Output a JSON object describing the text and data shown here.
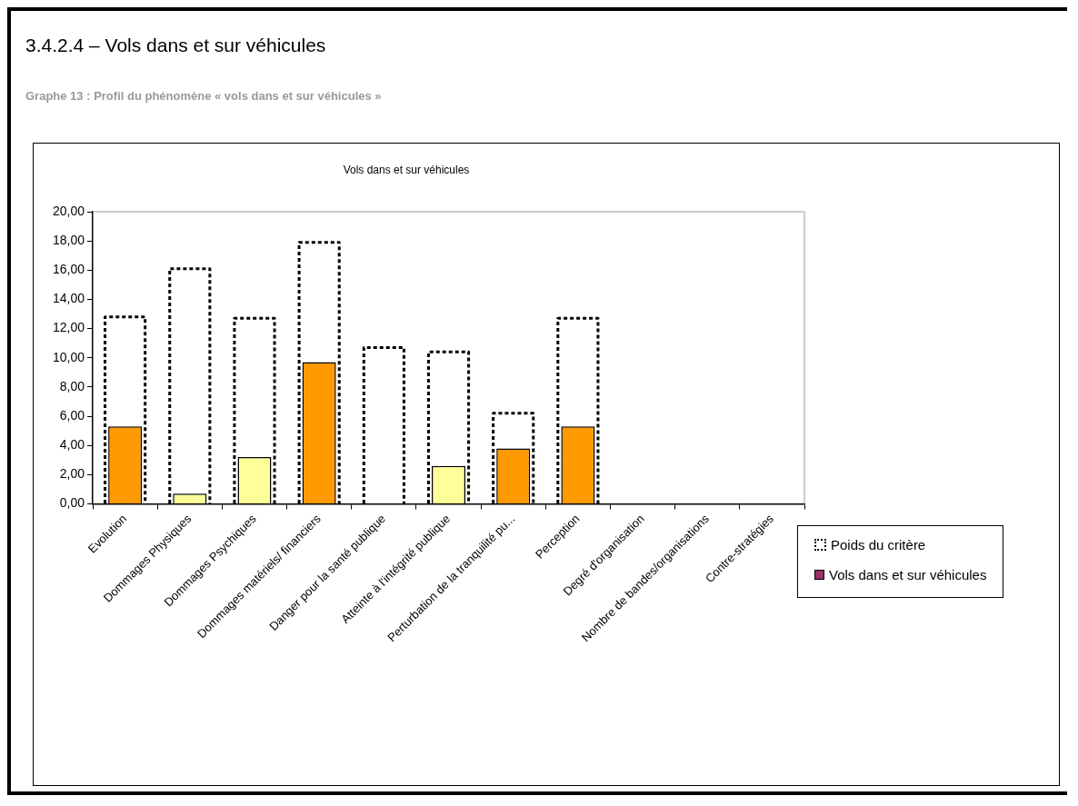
{
  "chart_data": {
    "type": "bar",
    "title": "3.4.2.4 – Vols dans et sur véhicules",
    "subtitle": "Graphe 13 : Profil du phénomène « vols dans et sur véhicules »",
    "annotations": [
      "Vols dans et sur véhicules"
    ],
    "categories": [
      "Evolution",
      "Dommages Physiques",
      "Dommages Psychiques",
      "Dommages matériels/ financiers",
      "Danger pour la santé publique",
      "Atteinte à l'intégrité publique",
      "Perturbation de la tranquilité pu...",
      "Perception",
      "Degré d'organisation",
      "Nombre de bandes/organisations",
      "Contre-stratégies"
    ],
    "series": [
      {
        "name": "Poids du critère",
        "color": "#ffffff",
        "line_style": "dotted",
        "values": [
          12.8,
          16.1,
          12.7,
          17.9,
          10.7,
          10.4,
          6.2,
          12.7,
          0,
          0,
          0
        ]
      },
      {
        "name": "Vols dans et sur véhicules",
        "color": "#993366",
        "colors": [
          "#ff9900",
          "#ffff99",
          "#ffff99",
          "#ff9900",
          "#ffff99",
          "#ffff99",
          "#ff9900",
          "#ff9900",
          "#ff9900",
          "#ff9900",
          "#ff9900"
        ],
        "values": [
          5.3,
          0.7,
          3.2,
          9.7,
          0,
          2.6,
          3.8,
          5.3,
          0,
          0,
          0
        ]
      }
    ],
    "ylim": [
      0,
      20
    ],
    "yticks": [
      {
        "value": 0,
        "label": "0,00"
      },
      {
        "value": 2,
        "label": "2,00"
      },
      {
        "value": 4,
        "label": "4,00"
      },
      {
        "value": 6,
        "label": "6,00"
      },
      {
        "value": 8,
        "label": "8,00"
      },
      {
        "value": 10,
        "label": "10,00"
      },
      {
        "value": 12,
        "label": "12,00"
      },
      {
        "value": 14,
        "label": "14,00"
      },
      {
        "value": 16,
        "label": "16,00"
      },
      {
        "value": 18,
        "label": "18,00"
      },
      {
        "value": 20,
        "label": "20,00"
      }
    ],
    "grid": false,
    "legend": "right"
  }
}
